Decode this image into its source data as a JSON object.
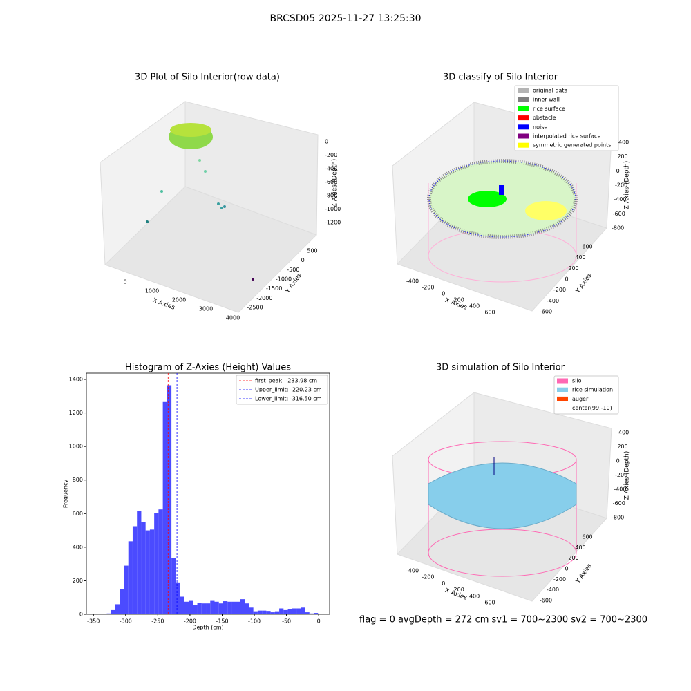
{
  "title": "BRCSD05 2025-11-27 13:25:30",
  "footer": "flag = 0     avgDepth = 272 cm  sv1 = 700~2300  sv2 = 700~2300",
  "chart_data": [
    {
      "type": "scatter3d",
      "title": "3D Plot of Silo Interior(row data)",
      "xlabel": "X Axies",
      "ylabel": "Y Axies",
      "zlabel": "Z Axies (Depth)",
      "xticks": [
        0,
        1000,
        2000,
        3000,
        4000
      ],
      "yticks": [
        500,
        0,
        -500,
        -1000,
        -1500,
        -2000,
        -2500
      ],
      "zticks": [
        0,
        -200,
        -400,
        -600,
        -800,
        -1000,
        -1200
      ]
    },
    {
      "type": "scatter3d",
      "title": "3D classify of Silo Interior",
      "xlabel": "X Axies",
      "ylabel": "Y Axies",
      "zlabel": "Z Axies (Depth)",
      "xticks": [
        -400,
        -200,
        0,
        200,
        400,
        600
      ],
      "yticks": [
        600,
        400,
        200,
        0,
        -200,
        -400,
        -600
      ],
      "zticks": [
        400,
        200,
        0,
        -200,
        -400,
        -600,
        -800
      ],
      "legend": [
        {
          "name": "original data",
          "color": "#b4b4b4"
        },
        {
          "name": "inner wall",
          "color": "#808080"
        },
        {
          "name": "rice surface",
          "color": "#00ff00"
        },
        {
          "name": "obstacle",
          "color": "#ff0000"
        },
        {
          "name": "noise",
          "color": "#0000ff"
        },
        {
          "name": "interpolated rice surface",
          "color": "#800080"
        },
        {
          "name": "symmetric generated points",
          "color": "#ffff00"
        }
      ]
    },
    {
      "type": "histogram",
      "title": "Histogram of Z-Axies (Height) Values",
      "xlabel": "Depth (cm)",
      "ylabel": "Frequency",
      "color": "#4b4bff",
      "bins": [
        -336,
        -329.3,
        -322.6,
        -315.9,
        -309.2,
        -302.5,
        -295.8,
        -289.1,
        -282.4,
        -275.7,
        -269,
        -262.3,
        -255.6,
        -248.9,
        -242.2,
        -235.5,
        -228.8,
        -222.1,
        -215.4,
        -208.7,
        -202,
        -195.3,
        -188.6,
        -181.9,
        -175.2,
        -168.5,
        -161.8,
        -155.1,
        -148.4,
        -141.7,
        -135,
        -128.3,
        -121.6,
        -114.9,
        -108.2,
        -101.5,
        -94.8,
        -88.1,
        -81.4,
        -74.7,
        -68,
        -61.3,
        -54.6,
        -47.9,
        -41.2,
        -34.5,
        -27.8,
        -21.1,
        -14.4,
        -7.7,
        -1
      ],
      "values": [
        2,
        5,
        25,
        60,
        150,
        290,
        435,
        525,
        615,
        550,
        500,
        505,
        605,
        625,
        1265,
        1365,
        335,
        190,
        105,
        75,
        80,
        55,
        70,
        65,
        65,
        80,
        75,
        65,
        78,
        75,
        75,
        75,
        90,
        65,
        40,
        18,
        22,
        22,
        20,
        12,
        18,
        35,
        25,
        30,
        35,
        35,
        40,
        12,
        5,
        8
      ],
      "xlim": [
        -361,
        17
      ],
      "ylim": [
        0,
        1437
      ],
      "xticks": [
        -350,
        -300,
        -250,
        -200,
        -150,
        -100,
        -50,
        0
      ],
      "yticks": [
        0,
        200,
        400,
        600,
        800,
        1000,
        1200,
        1400
      ],
      "lines": [
        {
          "name": "first_peak: -233.98 cm",
          "value": -233.98,
          "color": "#ff0000"
        },
        {
          "name": "Upper_limit: -220.23 cm",
          "value": -220.23,
          "color": "#0000ff"
        },
        {
          "name": "Lower_limit: -316.50 cm",
          "value": -316.5,
          "color": "#0000ff"
        }
      ]
    },
    {
      "type": "surface3d",
      "title": "3D simulation of Silo Interior",
      "xlabel": "X Axies",
      "ylabel": "Y Axies",
      "zlabel": "Z Axies (Depth)",
      "xticks": [
        -400,
        -200,
        0,
        200,
        400,
        600
      ],
      "yticks": [
        600,
        400,
        200,
        0,
        -200,
        -400,
        -600
      ],
      "zticks": [
        400,
        200,
        0,
        -200,
        -400,
        -600,
        -800
      ],
      "legend": [
        {
          "name": "silo",
          "color": "#ff69b4"
        },
        {
          "name": "rice simulation",
          "color": "#87ceeb"
        },
        {
          "name": "auger",
          "color": "#ff4500"
        },
        {
          "name": "center(99,-10)",
          "color": "#ffffff"
        }
      ]
    }
  ]
}
